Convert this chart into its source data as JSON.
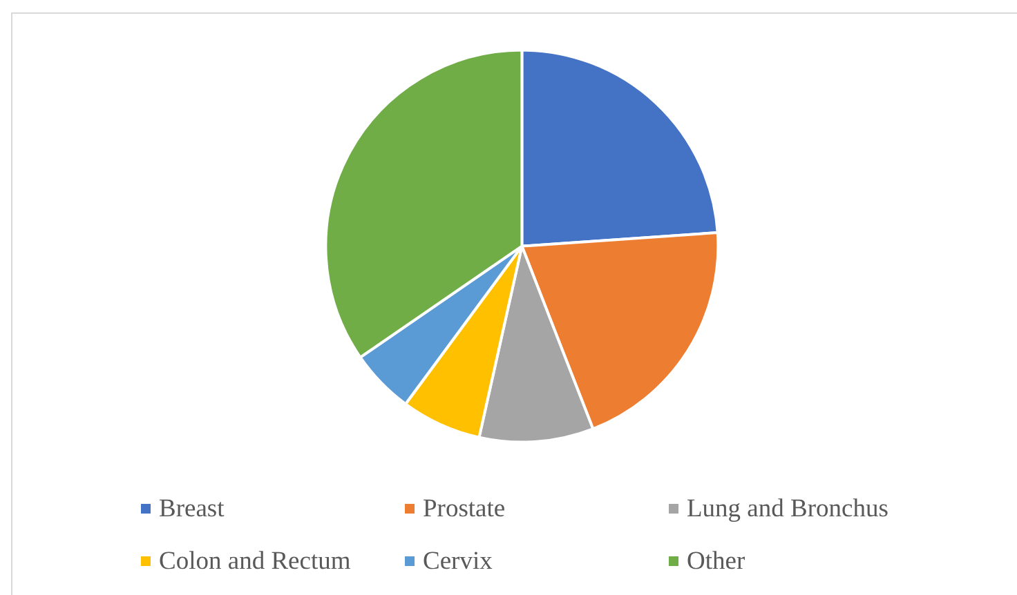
{
  "chart_data": {
    "type": "pie",
    "categories": [
      "Breast",
      "Prostate",
      "Lung and Bronchus",
      "Colon and Rectum",
      "Cervix",
      "Other"
    ],
    "values": [
      23.9,
      20.2,
      9.4,
      6.6,
      5.3,
      34.6
    ],
    "colors": [
      "#4472c4",
      "#ed7d31",
      "#a5a5a5",
      "#ffc000",
      "#5b9bd5",
      "#70ad47"
    ],
    "legend": "bottom"
  }
}
